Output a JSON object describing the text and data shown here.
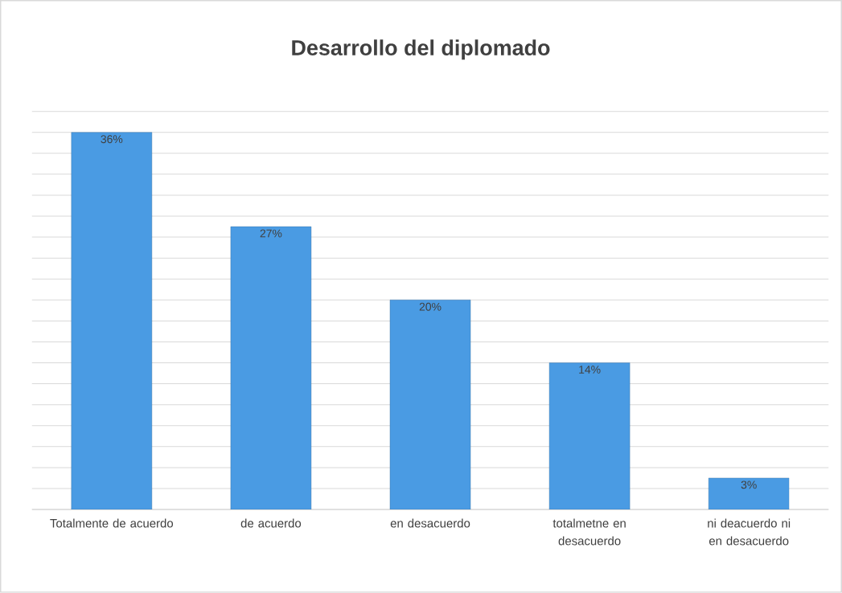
{
  "chart_data": {
    "type": "bar",
    "title": "Desarrollo del diplomado",
    "categories": [
      "Totalmente de acuerdo",
      "de acuerdo",
      "en desacuerdo",
      "totalmetne en desacuerdo",
      "ni deacuerdo ni en desacuerdo"
    ],
    "values": [
      36,
      27,
      20,
      14,
      3
    ],
    "value_labels": [
      "36%",
      "27%",
      "20%",
      "14%",
      "3%"
    ],
    "color": "#4a9be3",
    "grid": "y",
    "tick_labels": "x"
  }
}
